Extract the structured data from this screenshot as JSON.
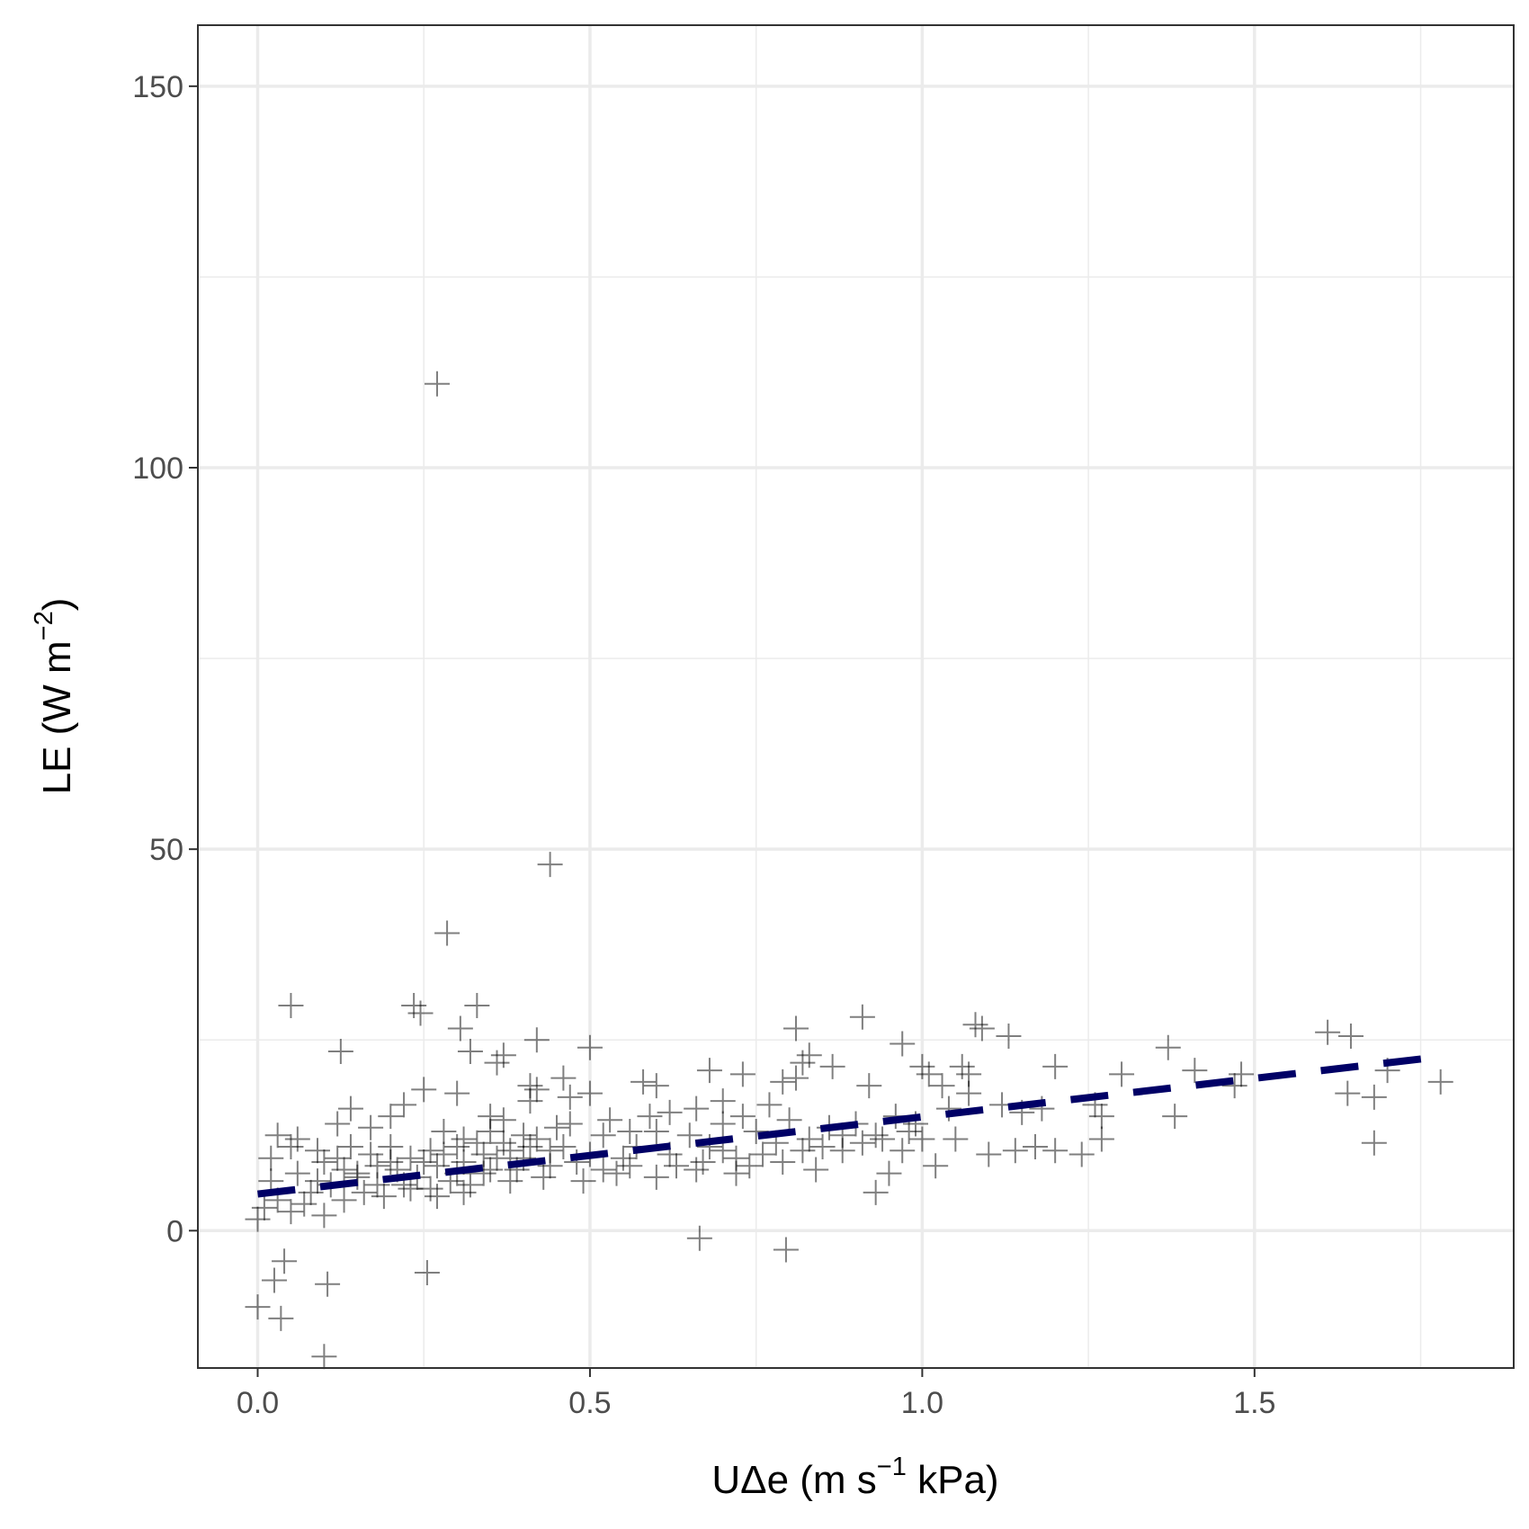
{
  "chart_data": {
    "type": "scatter",
    "title": "",
    "xlabel": {
      "base": "UΔe (m s",
      "sup": "−1",
      "tail": " kPa)"
    },
    "ylabel": {
      "base": "LE (W m",
      "sup": "−2",
      "tail": ")"
    },
    "xlim": [
      -0.09,
      1.89
    ],
    "ylim": [
      -18,
      158
    ],
    "x_ticks": [
      0.0,
      0.5,
      1.0,
      1.5
    ],
    "x_tick_labels": [
      "0.0",
      "0.5",
      "1.0",
      "1.5"
    ],
    "y_ticks": [
      0,
      50,
      100,
      150
    ],
    "y_tick_labels": [
      "0",
      "50",
      "100",
      "150"
    ],
    "x_minor_ticks": [
      0.25,
      0.75,
      1.25,
      1.75
    ],
    "y_minor_ticks": [
      25,
      75,
      125
    ],
    "grid": true,
    "marker": "plus",
    "series": [
      {
        "kind": "points",
        "color": "#000000",
        "alpha": 0.5,
        "points": [
          [
            0.27,
            111.0
          ],
          [
            0.44,
            48.0
          ],
          [
            0.285,
            39.0
          ],
          [
            0.05,
            29.5
          ],
          [
            0.235,
            29.5
          ],
          [
            0.245,
            28.5
          ],
          [
            0.33,
            29.5
          ],
          [
            0.305,
            26.5
          ],
          [
            0.42,
            25.0
          ],
          [
            0.125,
            23.5
          ],
          [
            0.32,
            23.5
          ],
          [
            0.36,
            22.0
          ],
          [
            0.37,
            23.0
          ],
          [
            0.5,
            24.0
          ],
          [
            0.46,
            20.0
          ],
          [
            0.41,
            19.0
          ],
          [
            0.42,
            18.5
          ],
          [
            0.5,
            18.0
          ],
          [
            0.58,
            19.5
          ],
          [
            0.6,
            19.0
          ],
          [
            0.47,
            17.5
          ],
          [
            0.41,
            17.0
          ],
          [
            0.25,
            18.5
          ],
          [
            0.3,
            18.0
          ],
          [
            0.22,
            16.5
          ],
          [
            0.14,
            16.0
          ],
          [
            0.2,
            15.0
          ],
          [
            0.35,
            15.0
          ],
          [
            0.12,
            14.0
          ],
          [
            0.17,
            13.5
          ],
          [
            0.03,
            12.5
          ],
          [
            0.06,
            12.0
          ],
          [
            0.05,
            11.0
          ],
          [
            0.09,
            10.5
          ],
          [
            0.02,
            9.5
          ],
          [
            0.1,
            9.0
          ],
          [
            0.13,
            8.0
          ],
          [
            0.06,
            7.5
          ],
          [
            0.15,
            7.0
          ],
          [
            0.02,
            6.5
          ],
          [
            0.08,
            5.0
          ],
          [
            0.03,
            4.0
          ],
          [
            0.01,
            3.0
          ],
          [
            0.05,
            2.5
          ],
          [
            0.0,
            1.5
          ],
          [
            0.1,
            2.0
          ],
          [
            0.04,
            -4.0
          ],
          [
            0.025,
            -6.5
          ],
          [
            0.0,
            -10.0
          ],
          [
            0.035,
            -11.5
          ],
          [
            0.105,
            -7.0
          ],
          [
            0.255,
            -5.5
          ],
          [
            0.1,
            -16.5
          ],
          [
            0.665,
            -1.0
          ],
          [
            0.795,
            -2.5
          ],
          [
            0.2,
            11.0
          ],
          [
            0.25,
            9.0
          ],
          [
            0.22,
            6.0
          ],
          [
            0.18,
            8.5
          ],
          [
            0.28,
            10.0
          ],
          [
            0.3,
            7.5
          ],
          [
            0.33,
            11.5
          ],
          [
            0.35,
            8.0
          ],
          [
            0.38,
            10.5
          ],
          [
            0.4,
            9.5
          ],
          [
            0.42,
            12.0
          ],
          [
            0.44,
            8.5
          ],
          [
            0.46,
            11.0
          ],
          [
            0.48,
            9.0
          ],
          [
            0.5,
            10.0
          ],
          [
            0.52,
            12.5
          ],
          [
            0.55,
            9.5
          ],
          [
            0.57,
            11.0
          ],
          [
            0.6,
            13.0
          ],
          [
            0.62,
            10.0
          ],
          [
            0.65,
            12.5
          ],
          [
            0.68,
            11.0
          ],
          [
            0.7,
            14.0
          ],
          [
            0.72,
            9.5
          ],
          [
            0.75,
            13.0
          ],
          [
            0.78,
            11.5
          ],
          [
            0.8,
            14.5
          ],
          [
            0.83,
            12.0
          ],
          [
            0.86,
            13.5
          ],
          [
            0.88,
            10.5
          ],
          [
            0.9,
            14.0
          ],
          [
            0.93,
            12.5
          ],
          [
            0.96,
            15.0
          ],
          [
            0.98,
            13.0
          ],
          [
            1.0,
            12.0
          ],
          [
            0.62,
            15.5
          ],
          [
            0.66,
            16.0
          ],
          [
            0.7,
            17.0
          ],
          [
            0.73,
            15.0
          ],
          [
            0.77,
            16.5
          ],
          [
            0.26,
            5.5
          ],
          [
            0.32,
            6.0
          ],
          [
            0.38,
            6.5
          ],
          [
            0.43,
            7.0
          ],
          [
            0.49,
            6.5
          ],
          [
            0.54,
            7.5
          ],
          [
            0.6,
            7.0
          ],
          [
            0.66,
            8.0
          ],
          [
            0.72,
            7.5
          ],
          [
            0.84,
            8.0
          ],
          [
            0.81,
            26.5
          ],
          [
            0.82,
            22.0
          ],
          [
            0.83,
            23.0
          ],
          [
            0.865,
            21.5
          ],
          [
            0.81,
            20.0
          ],
          [
            0.79,
            19.5
          ],
          [
            0.73,
            20.5
          ],
          [
            0.68,
            21.0
          ],
          [
            0.91,
            28.0
          ],
          [
            0.97,
            24.5
          ],
          [
            0.92,
            19.0
          ],
          [
            1.0,
            21.5
          ],
          [
            1.01,
            20.5
          ],
          [
            1.03,
            19.0
          ],
          [
            1.06,
            21.5
          ],
          [
            1.07,
            20.5
          ],
          [
            1.08,
            27.0
          ],
          [
            1.09,
            26.5
          ],
          [
            1.13,
            25.5
          ],
          [
            1.07,
            18.0
          ],
          [
            1.12,
            16.5
          ],
          [
            1.15,
            15.5
          ],
          [
            1.18,
            16.0
          ],
          [
            1.2,
            21.5
          ],
          [
            1.04,
            16.0
          ],
          [
            0.93,
            5.0
          ],
          [
            0.95,
            7.5
          ],
          [
            1.02,
            8.5
          ],
          [
            1.1,
            10.0
          ],
          [
            1.05,
            12.0
          ],
          [
            1.14,
            10.5
          ],
          [
            1.17,
            11.0
          ],
          [
            1.2,
            10.5
          ],
          [
            1.24,
            10.0
          ],
          [
            1.27,
            15.0
          ],
          [
            1.27,
            12.0
          ],
          [
            1.3,
            20.5
          ],
          [
            1.37,
            24.0
          ],
          [
            1.38,
            15.0
          ],
          [
            1.41,
            21.0
          ],
          [
            1.48,
            20.5
          ],
          [
            1.47,
            19.0
          ],
          [
            1.61,
            26.0
          ],
          [
            1.645,
            25.5
          ],
          [
            1.64,
            18.0
          ],
          [
            1.68,
            17.5
          ],
          [
            1.7,
            21.0
          ],
          [
            1.68,
            11.5
          ],
          [
            1.78,
            19.5
          ],
          [
            1.26,
            16.5
          ],
          [
            0.15,
            7.5
          ],
          [
            0.18,
            6.0
          ],
          [
            0.21,
            8.0
          ],
          [
            0.24,
            7.0
          ],
          [
            0.27,
            8.5
          ],
          [
            0.29,
            6.5
          ],
          [
            0.31,
            9.0
          ],
          [
            0.34,
            7.5
          ],
          [
            0.36,
            9.5
          ],
          [
            0.39,
            8.0
          ],
          [
            0.16,
            5.0
          ],
          [
            0.19,
            4.5
          ],
          [
            0.23,
            5.5
          ],
          [
            0.27,
            4.5
          ],
          [
            0.31,
            5.0
          ],
          [
            0.11,
            6.0
          ],
          [
            0.13,
            4.0
          ],
          [
            0.07,
            3.5
          ],
          [
            0.09,
            6.5
          ],
          [
            0.12,
            9.5
          ],
          [
            0.45,
            13.5
          ],
          [
            0.47,
            14.0
          ],
          [
            0.53,
            14.5
          ],
          [
            0.56,
            13.0
          ],
          [
            0.59,
            15.0
          ],
          [
            0.35,
            13.0
          ],
          [
            0.37,
            14.5
          ],
          [
            0.4,
            12.5
          ],
          [
            0.31,
            12.0
          ],
          [
            0.28,
            13.0
          ],
          [
            0.63,
            8.5
          ],
          [
            0.67,
            9.0
          ],
          [
            0.7,
            10.5
          ],
          [
            0.74,
            8.5
          ],
          [
            0.76,
            10.0
          ],
          [
            0.79,
            9.0
          ],
          [
            0.82,
            10.5
          ],
          [
            0.85,
            11.0
          ],
          [
            0.88,
            12.5
          ],
          [
            0.91,
            11.5
          ],
          [
            0.94,
            12.0
          ],
          [
            0.97,
            10.5
          ],
          [
            0.99,
            14.0
          ],
          [
            0.52,
            8.0
          ],
          [
            0.56,
            8.5
          ],
          [
            0.44,
            10.5
          ],
          [
            0.41,
            11.0
          ],
          [
            0.37,
            11.5
          ],
          [
            0.34,
            10.0
          ],
          [
            0.3,
            11.0
          ],
          [
            0.26,
            10.5
          ],
          [
            0.23,
            9.5
          ],
          [
            0.2,
            9.0
          ],
          [
            0.17,
            10.0
          ],
          [
            0.14,
            11.0
          ]
        ]
      },
      {
        "kind": "fit_line",
        "style": "dashed",
        "color": "#000066",
        "x": [
          0.0,
          1.78
        ],
        "y": [
          4.8,
          22.8
        ]
      }
    ]
  }
}
